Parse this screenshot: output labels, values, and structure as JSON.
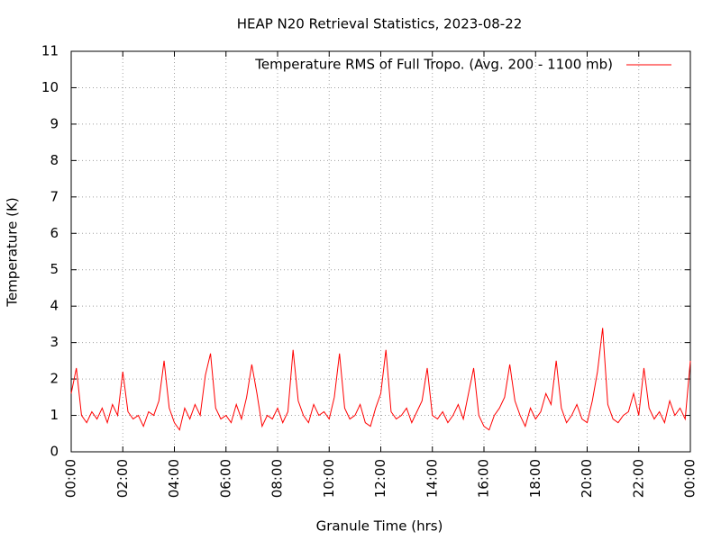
{
  "chart_data": {
    "type": "line",
    "title": "HEAP N20 Retrieval Statistics, 2023-08-22",
    "xlabel": "Granule Time (hrs)",
    "ylabel": "Temperature (K)",
    "x": [
      0,
      0.2,
      0.4,
      0.6,
      0.8,
      1,
      1.2,
      1.4,
      1.6,
      1.8,
      2,
      2.2,
      2.4,
      2.6,
      2.8,
      3,
      3.2,
      3.4,
      3.6,
      3.8,
      4,
      4.2,
      4.4,
      4.6,
      4.8,
      5,
      5.2,
      5.4,
      5.6,
      5.8,
      6,
      6.2,
      6.4,
      6.6,
      6.8,
      7,
      7.2,
      7.4,
      7.6,
      7.8,
      8,
      8.2,
      8.4,
      8.6,
      8.8,
      9,
      9.2,
      9.4,
      9.6,
      9.8,
      10,
      10.2,
      10.4,
      10.6,
      10.8,
      11,
      11.2,
      11.4,
      11.6,
      11.8,
      12,
      12.2,
      12.4,
      12.6,
      12.8,
      13,
      13.2,
      13.4,
      13.6,
      13.8,
      14,
      14.2,
      14.4,
      14.6,
      14.8,
      15,
      15.2,
      15.4,
      15.6,
      15.8,
      16,
      16.2,
      16.4,
      16.6,
      16.8,
      17,
      17.2,
      17.4,
      17.6,
      17.8,
      18,
      18.2,
      18.4,
      18.6,
      18.8,
      19,
      19.2,
      19.4,
      19.6,
      19.8,
      20,
      20.2,
      20.4,
      20.6,
      20.8,
      21,
      21.2,
      21.4,
      21.6,
      21.8,
      22,
      22.2,
      22.4,
      22.6,
      22.8,
      23,
      23.2,
      23.4,
      23.6,
      23.8,
      24
    ],
    "series": [
      {
        "name": "Temperature RMS of Full Tropo. (Avg. 200 - 1100 mb)",
        "color": "#ff0000",
        "values": [
          1.6,
          2.3,
          1.0,
          0.8,
          1.1,
          0.9,
          1.2,
          0.8,
          1.3,
          1.0,
          2.2,
          1.1,
          0.9,
          1.0,
          0.7,
          1.1,
          1.0,
          1.4,
          2.5,
          1.2,
          0.8,
          0.6,
          1.2,
          0.9,
          1.3,
          1.0,
          2.1,
          2.7,
          1.2,
          0.9,
          1.0,
          0.8,
          1.3,
          0.9,
          1.5,
          2.4,
          1.6,
          0.7,
          1.0,
          0.9,
          1.2,
          0.8,
          1.1,
          2.8,
          1.4,
          1.0,
          0.8,
          1.3,
          1.0,
          1.1,
          0.9,
          1.5,
          2.7,
          1.2,
          0.9,
          1.0,
          1.3,
          0.8,
          0.7,
          1.2,
          1.6,
          2.8,
          1.1,
          0.9,
          1.0,
          1.2,
          0.8,
          1.1,
          1.4,
          2.3,
          1.0,
          0.9,
          1.1,
          0.8,
          1.0,
          1.3,
          0.9,
          1.6,
          2.3,
          1.0,
          0.7,
          0.6,
          1.0,
          1.2,
          1.5,
          2.4,
          1.4,
          1.0,
          0.7,
          1.2,
          0.9,
          1.1,
          1.6,
          1.3,
          2.5,
          1.2,
          0.8,
          1.0,
          1.3,
          0.9,
          0.8,
          1.4,
          2.2,
          3.4,
          1.3,
          0.9,
          0.8,
          1.0,
          1.1,
          1.6,
          1.0,
          2.3,
          1.2,
          0.9,
          1.1,
          0.8,
          1.4,
          1.0,
          1.2,
          0.9,
          2.5
        ]
      }
    ],
    "xlim": [
      0,
      24
    ],
    "xticks": [
      {
        "value": 0,
        "label": "00:00"
      },
      {
        "value": 2,
        "label": "02:00"
      },
      {
        "value": 4,
        "label": "04:00"
      },
      {
        "value": 6,
        "label": "06:00"
      },
      {
        "value": 8,
        "label": "08:00"
      },
      {
        "value": 10,
        "label": "10:00"
      },
      {
        "value": 12,
        "label": "12:00"
      },
      {
        "value": 14,
        "label": "14:00"
      },
      {
        "value": 16,
        "label": "16:00"
      },
      {
        "value": 18,
        "label": "18:00"
      },
      {
        "value": 20,
        "label": "20:00"
      },
      {
        "value": 22,
        "label": "22:00"
      },
      {
        "value": 24,
        "label": "00:00"
      }
    ],
    "ylim": [
      0,
      11
    ],
    "yticks": [
      0,
      1,
      2,
      3,
      4,
      5,
      6,
      7,
      8,
      9,
      10,
      11
    ],
    "grid": true,
    "legend": "top-right"
  }
}
